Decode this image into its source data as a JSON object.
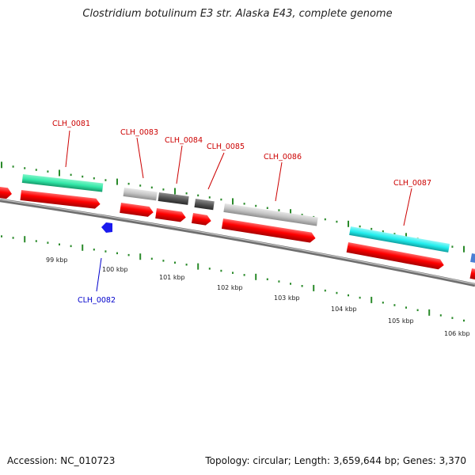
{
  "title": "Clostridium botulinum E3 str. Alaska E43, complete genome",
  "footer": {
    "accession": "Accession: NC_010723",
    "stats": "Topology: circular; Length: 3,659,644 bp; Genes: 3,370"
  },
  "colors": {
    "backbone": "#8a8a8a",
    "cds_strand": "#ff0000",
    "tick": "#2a8a2a",
    "label_top": "#cc0000",
    "label_bottom": "#0000cc",
    "gene_green": "#33e8a8",
    "gene_light_gray": "#c8c8c8",
    "gene_dark_gray": "#555555",
    "gene_cyan": "#22eeee",
    "gene_blue": "#1a1aee"
  },
  "scale_labels": [
    "99 kbp",
    "100 kbp",
    "101 kbp",
    "102 kbp",
    "103 kbp",
    "104 kbp",
    "105 kbp",
    "106 kbp"
  ],
  "gene_labels": [
    {
      "id": "CLH_0081",
      "strand": "top"
    },
    {
      "id": "CLH_0082",
      "strand": "bottom"
    },
    {
      "id": "CLH_0083",
      "strand": "top"
    },
    {
      "id": "CLH_0084",
      "strand": "top"
    },
    {
      "id": "CLH_0085",
      "strand": "top"
    },
    {
      "id": "CLH_0086",
      "strand": "top"
    },
    {
      "id": "CLH_0087",
      "strand": "top"
    }
  ]
}
